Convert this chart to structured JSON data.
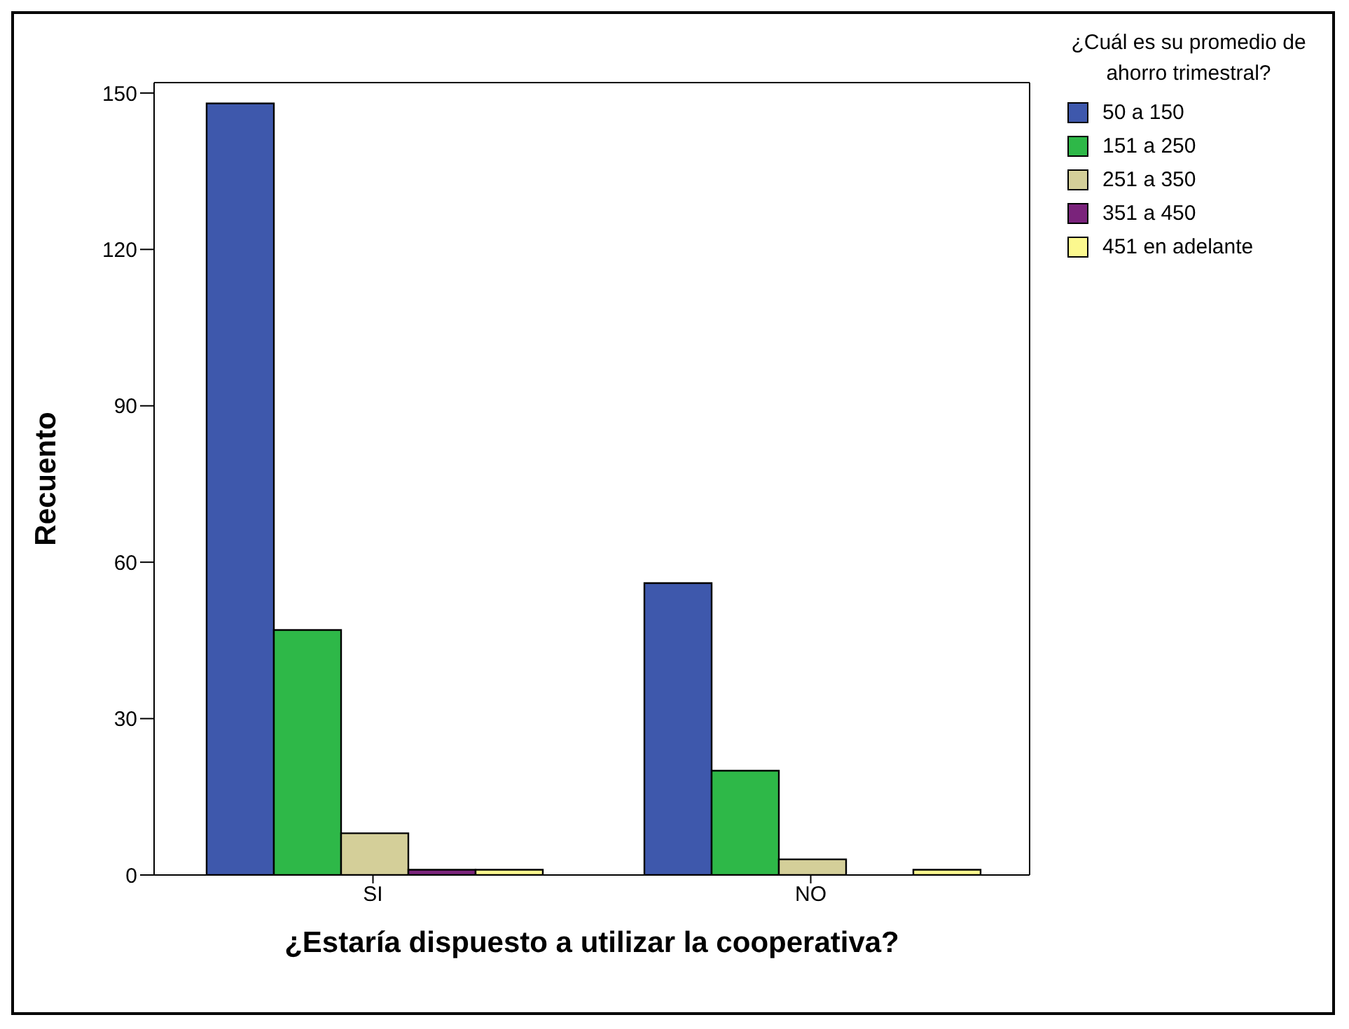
{
  "chart_data": {
    "type": "bar",
    "xlabel": "¿Estaría dispuesto a utilizar la cooperativa?",
    "ylabel": "Recuento",
    "legend_title": "¿Cuál es su promedio de ahorro trimestral?",
    "categories": [
      "SI",
      "NO"
    ],
    "series": [
      {
        "name": "50 a 150",
        "color": "#3e58ac",
        "values": [
          148,
          56
        ]
      },
      {
        "name": "151 a 250",
        "color": "#2eb848",
        "values": [
          47,
          20
        ]
      },
      {
        "name": "251 a 350",
        "color": "#d4cf99",
        "values": [
          8,
          3
        ]
      },
      {
        "name": "351 a 450",
        "color": "#7a237b",
        "values": [
          1,
          0
        ]
      },
      {
        "name": "451 en adelante",
        "color": "#fbf88e",
        "values": [
          1,
          1
        ]
      }
    ],
    "ylim": [
      0,
      152
    ],
    "yticks": [
      0,
      30,
      60,
      90,
      120,
      150
    ],
    "legend": "top right"
  }
}
